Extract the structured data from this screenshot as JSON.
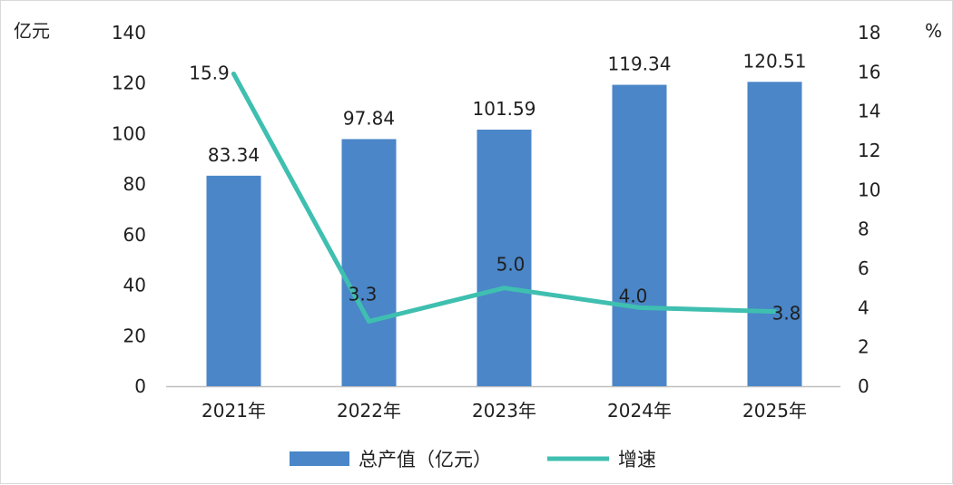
{
  "chart_data": {
    "type": "bar",
    "categories": [
      "2021年",
      "2022年",
      "2023年",
      "2024年",
      "2025年"
    ],
    "series": [
      {
        "name": "总产值（亿元）",
        "type": "bar",
        "axis": "left",
        "values": [
          83.34,
          97.84,
          101.59,
          119.34,
          120.51
        ],
        "labels": [
          "83.34",
          "97.84",
          "101.59",
          "119.34",
          "120.51"
        ],
        "color": "#4a86c8"
      },
      {
        "name": "增速",
        "type": "line",
        "axis": "right",
        "values": [
          15.9,
          3.3,
          5.0,
          4.0,
          3.8
        ],
        "labels": [
          "15.9",
          "3.3",
          "5.0",
          "4.0",
          "3.8"
        ],
        "color": "#3fbfb0"
      }
    ],
    "y_left": {
      "unit": "亿元",
      "ylim": [
        0,
        140
      ],
      "ticks": [
        "0",
        "20",
        "40",
        "60",
        "80",
        "100",
        "120",
        "140"
      ]
    },
    "y_right": {
      "unit": "%",
      "ylim": [
        0,
        18
      ],
      "ticks": [
        "0",
        "2",
        "4",
        "6",
        "8",
        "10",
        "12",
        "14",
        "16",
        "18"
      ]
    },
    "grid": false,
    "legend_position": "bottom"
  }
}
